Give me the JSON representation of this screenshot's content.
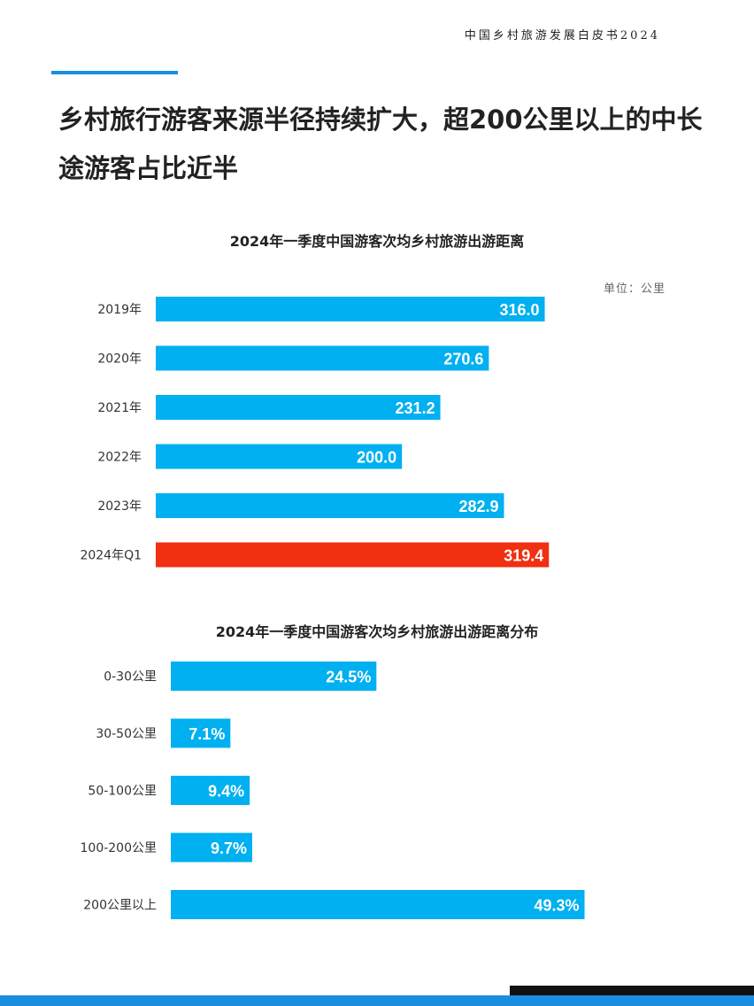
{
  "header": {
    "report_title": "中国乡村旅游发展白皮书2024"
  },
  "headline": "乡村旅行游客来源半径持续扩大，超200公里以上的中长途游客占比近半",
  "colors": {
    "accent": "#1a8de0",
    "bar": "#00b0f0",
    "highlight": "#f03010",
    "bottom_blue": "#1a8de0",
    "bottom_black": "#111111"
  },
  "chart_data": [
    {
      "type": "bar",
      "orientation": "horizontal",
      "title": "2024年一季度中国游客次均乡村旅游出游距离",
      "unit": "单位：公里",
      "categories": [
        "2019年",
        "2020年",
        "2021年",
        "2022年",
        "2023年",
        "2024年Q1"
      ],
      "values": [
        316.0,
        270.6,
        231.2,
        200.0,
        282.9,
        319.4
      ],
      "labels": [
        "316.0",
        "270.6",
        "231.2",
        "200.0",
        "282.9",
        "319.4"
      ],
      "highlight_index": 5,
      "xlim": [
        0,
        330
      ]
    },
    {
      "type": "bar",
      "orientation": "horizontal",
      "title": "2024年一季度中国游客次均乡村旅游出游距离分布",
      "categories": [
        "0-30公里",
        "30-50公里",
        "50-100公里",
        "100-200公里",
        "200公里以上"
      ],
      "values": [
        24.5,
        7.1,
        9.4,
        9.7,
        49.3
      ],
      "labels": [
        "24.5%",
        "7.1%",
        "9.4%",
        "9.7%",
        "49.3%"
      ],
      "xlim": [
        0,
        60
      ]
    }
  ]
}
